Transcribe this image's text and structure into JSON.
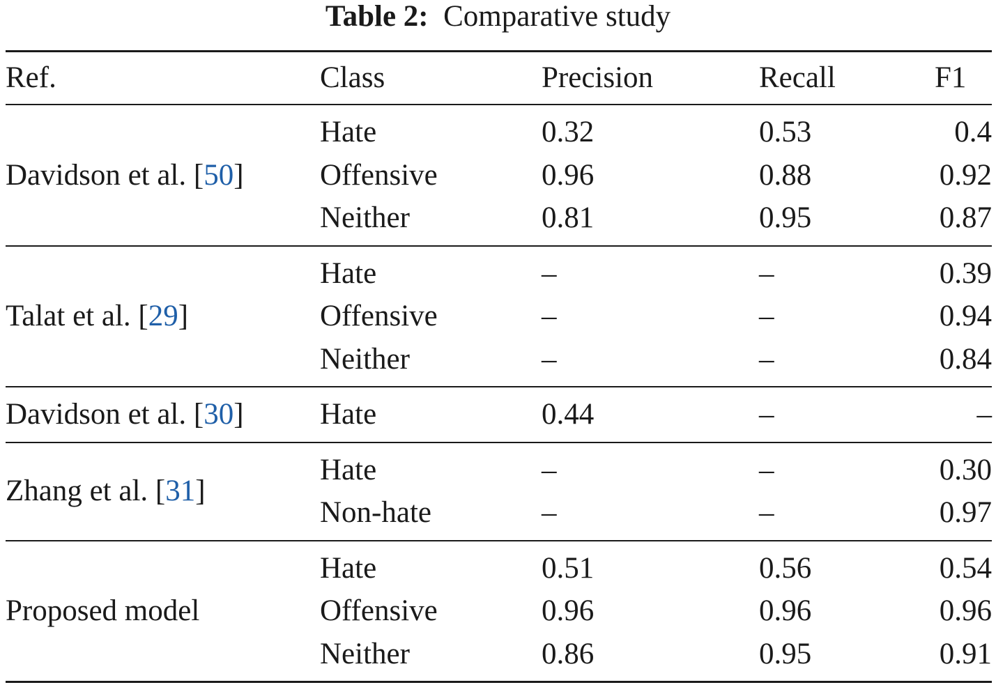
{
  "caption": {
    "label": "Table 2:",
    "text": "Comparative study"
  },
  "headers": {
    "ref": "Ref.",
    "class": "Class",
    "precision": "Precision",
    "recall": "Recall",
    "f1": "F1"
  },
  "groups": [
    {
      "ref_text": "Davidson et al. [",
      "ref_cite": "50",
      "ref_close": "]",
      "rows": [
        {
          "class": "Hate",
          "precision": "0.32",
          "recall": "0.53",
          "f1": "0.4"
        },
        {
          "class": "Offensive",
          "precision": "0.96",
          "recall": "0.88",
          "f1": "0.92"
        },
        {
          "class": "Neither",
          "precision": "0.81",
          "recall": "0.95",
          "f1": "0.87"
        }
      ]
    },
    {
      "ref_text": "Talat et al. [",
      "ref_cite": "29",
      "ref_close": "]",
      "rows": [
        {
          "class": "Hate",
          "precision": "–",
          "recall": "–",
          "f1": "0.39"
        },
        {
          "class": "Offensive",
          "precision": "–",
          "recall": "–",
          "f1": "0.94"
        },
        {
          "class": "Neither",
          "precision": "–",
          "recall": "–",
          "f1": "0.84"
        }
      ]
    },
    {
      "ref_text": "Davidson et al. [",
      "ref_cite": "30",
      "ref_close": "]",
      "rows": [
        {
          "class": "Hate",
          "precision": "0.44",
          "recall": "–",
          "f1": "–"
        }
      ]
    },
    {
      "ref_text": "Zhang et al. [",
      "ref_cite": "31",
      "ref_close": "]",
      "rows": [
        {
          "class": "Hate",
          "precision": "–",
          "recall": "–",
          "f1": "0.30"
        },
        {
          "class": "Non-hate",
          "precision": "–",
          "recall": "–",
          "f1": "0.97"
        }
      ]
    },
    {
      "ref_text": "Proposed model",
      "ref_cite": "",
      "ref_close": "",
      "rows": [
        {
          "class": "Hate",
          "precision": "0.51",
          "recall": "0.56",
          "f1": "0.54"
        },
        {
          "class": "Offensive",
          "precision": "0.96",
          "recall": "0.96",
          "f1": "0.96"
        },
        {
          "class": "Neither",
          "precision": "0.86",
          "recall": "0.95",
          "f1": "0.91"
        }
      ]
    }
  ],
  "colors": {
    "text": "#1a1a1a",
    "citation": "#1f5fa8"
  }
}
